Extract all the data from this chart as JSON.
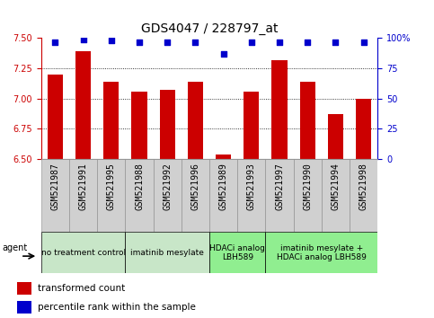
{
  "title": "GDS4047 / 228797_at",
  "samples": [
    "GSM521987",
    "GSM521991",
    "GSM521995",
    "GSM521988",
    "GSM521992",
    "GSM521996",
    "GSM521989",
    "GSM521993",
    "GSM521997",
    "GSM521990",
    "GSM521994",
    "GSM521998"
  ],
  "bar_values": [
    7.2,
    7.39,
    7.14,
    7.06,
    7.07,
    7.14,
    6.54,
    7.06,
    7.32,
    7.14,
    6.87,
    7.0
  ],
  "dot_values": [
    97,
    99,
    98,
    97,
    97,
    97,
    87,
    97,
    97,
    97,
    97,
    97
  ],
  "ylim_left": [
    6.5,
    7.5
  ],
  "ylim_right": [
    0,
    100
  ],
  "yticks_left": [
    6.5,
    6.75,
    7.0,
    7.25,
    7.5
  ],
  "yticks_right": [
    0,
    25,
    50,
    75,
    100
  ],
  "bar_color": "#cc0000",
  "dot_color": "#0000cc",
  "bar_width": 0.55,
  "groups": [
    {
      "label": "no treatment control",
      "start": 0,
      "end": 3,
      "color": "#c8e6c8"
    },
    {
      "label": "imatinib mesylate",
      "start": 3,
      "end": 6,
      "color": "#c8e6c8"
    },
    {
      "label": "HDACi analog\nLBH589",
      "start": 6,
      "end": 8,
      "color": "#90ee90"
    },
    {
      "label": "imatinib mesylate +\nHDACi analog LBH589",
      "start": 8,
      "end": 12,
      "color": "#90ee90"
    }
  ],
  "agent_label": "agent",
  "legend_items": [
    {
      "color": "#cc0000",
      "label": "transformed count"
    },
    {
      "color": "#0000cc",
      "label": "percentile rank within the sample"
    }
  ],
  "background_color": "#ffffff",
  "plot_bg_color": "#ffffff",
  "title_color": "#000000",
  "title_fontsize": 10,
  "tick_fontsize": 7,
  "sample_tick_fontsize": 7
}
